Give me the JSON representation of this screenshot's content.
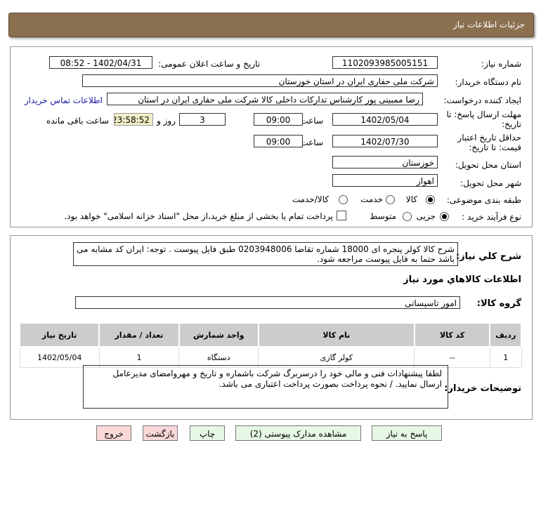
{
  "header": {
    "title": "جزئيات اطلاعات نياز"
  },
  "form": {
    "need_number_label": "شماره نیاز:",
    "need_number": "1102093985005151",
    "announce_label": "تاریخ و ساعت اعلان عمومی:",
    "announce_value": "1402/04/31 - 08:52",
    "buyer_label": "نام دستگاه خریدار:",
    "buyer": "شرکت ملی حفاری ایران در استان خوزستان",
    "creator_label": "ایجاد کننده درخواست:",
    "creator": "رضا ممبینی پور کارشناس تدارکات داخلی کالا شرکت ملی حفاری ایران در استان",
    "contact_link": "اطلاعات تماس خریدار",
    "deadline_label": "مهلت ارسال پاسخ: تا تاریخ:",
    "deadline_date": "1402/05/04",
    "time_label": "ساعت",
    "deadline_time": "09:00",
    "days": "3",
    "days_label": "روز و",
    "remaining": "23:58:52",
    "remaining_label": "ساعت باقی مانده",
    "validity_label": "حداقل تاریخ اعتبار قیمت: تا تاریخ:",
    "validity_date": "1402/07/30",
    "validity_time": "09:00",
    "province_label": "استان محل تحویل:",
    "province": "خوزستان",
    "city_label": "شهر محل تحویل:",
    "city": "اهواز",
    "category_label": "طبقه بندی موضوعی:",
    "category_options": [
      "کالا",
      "خدمت",
      "کالا/خدمت"
    ],
    "process_label": "نوع فرآیند خرید :",
    "process_options": [
      "جزیی",
      "متوسط"
    ],
    "payment_note": "پرداخت تمام یا بخشی از مبلغ خرید،از محل \"اسناد خزانه اسلامی\" خواهد بود."
  },
  "details": {
    "desc_label": "شرح کلي نياز:",
    "desc": "شرح کالا کولر پنجره ای 18000 شماره تقاضا     0203948006   طبق فایل پیوست . توجه: ایران کد مشابه می باشد حتما به فایل پیوست مراجعه شود.",
    "goods_info_title": "اطلاعات کالاهاي مورد نياز",
    "group_label": "گروه کالا:",
    "group": "امور تاسیساتی",
    "table": {
      "headers": [
        "ردیف",
        "کد کالا",
        "نام کالا",
        "واحد شمارش",
        "تعداد / مقدار",
        "تاریخ نیاز"
      ],
      "rows": [
        [
          "1",
          "--",
          "کولر گازی",
          "دستگاه",
          "1",
          "1402/05/04"
        ]
      ]
    },
    "buyer_notes_label": "توضیحات خریدار:",
    "buyer_notes": "لطفا پیشنهادات فنی و مالی خود را درسربرگ شرکت باشماره و تاریخ و مهروامضای مدیرعامل ارسال نمایید. / نحوه پرداخت بصورت پرداخت اعتباری می باشد."
  },
  "buttons": {
    "reply": "پاسخ به نیاز",
    "attachments": "مشاهده مدارک پیوستی (2)",
    "print": "چاپ",
    "back": "بازگشت",
    "exit": "خروج"
  },
  "colors": {
    "header": "#8b7050",
    "link": "#1a1aa6",
    "remaining_bg": "#f2efc8"
  }
}
